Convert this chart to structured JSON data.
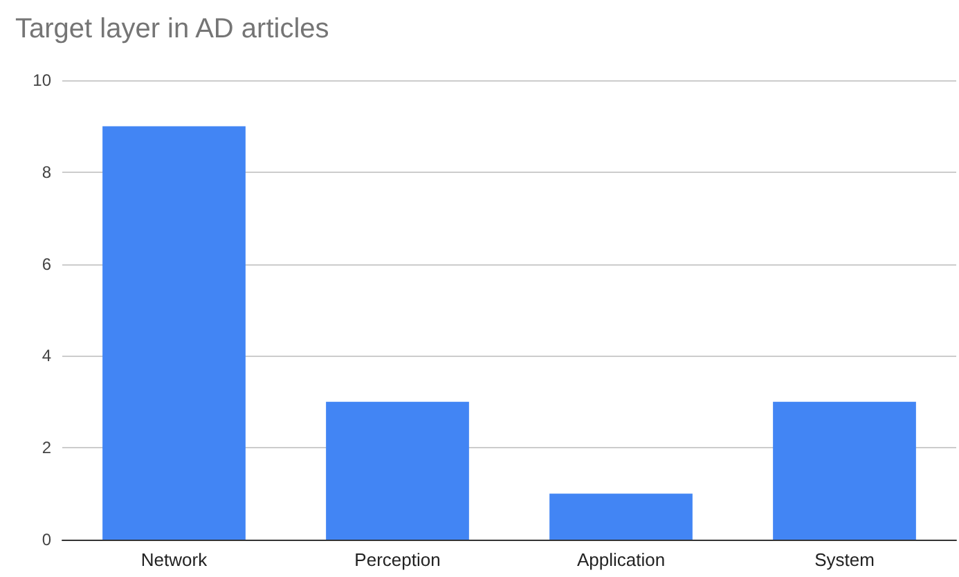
{
  "chart_data": {
    "type": "bar",
    "title": "Target layer in AD articles",
    "categories": [
      "Network",
      "Perception",
      "Application",
      "System"
    ],
    "values": [
      9,
      3,
      1,
      3
    ],
    "color": "#4285f4",
    "ylim": [
      0,
      10
    ],
    "yticks": [
      0,
      2,
      4,
      6,
      8,
      10
    ],
    "grid": "y"
  }
}
